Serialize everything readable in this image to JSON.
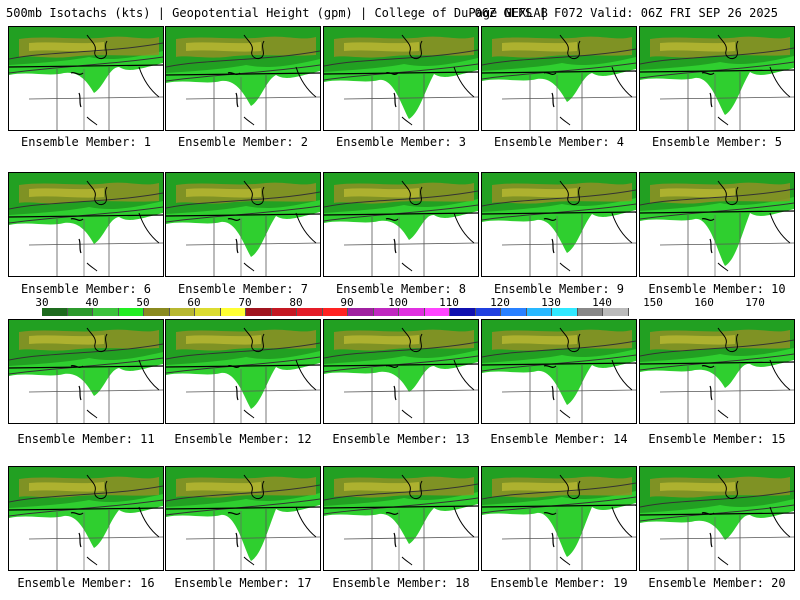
{
  "header": {
    "left": "500mb Isotachs (kts) | Geopotential Height (gpm) | College of DuPage NEXLAB",
    "right": "06Z GEFS | F072 Valid: 06Z FRI SEP 26 2025"
  },
  "colorbar": {
    "ticks": [
      "30",
      "40",
      "50",
      "60",
      "70",
      "80",
      "90",
      "100",
      "110",
      "120",
      "130",
      "140",
      "150",
      "160",
      "170"
    ],
    "colors": [
      "#1e6b1e",
      "#2c9a2c",
      "#3cc33c",
      "#22ee22",
      "#8a8a1f",
      "#b8b830",
      "#dcdc30",
      "#ffff33",
      "#a0141e",
      "#c41822",
      "#e41c28",
      "#ff2222",
      "#a020a0",
      "#c028c0",
      "#e030e0",
      "#ff44ff",
      "#1010b0",
      "#2040e0",
      "#2880ff",
      "#28b8ff",
      "#30e8ff",
      "#888888",
      "#bbbbbb"
    ]
  },
  "members": [
    {
      "label": "Ensemble Member: 1"
    },
    {
      "label": "Ensemble Member: 2"
    },
    {
      "label": "Ensemble Member: 3"
    },
    {
      "label": "Ensemble Member: 4"
    },
    {
      "label": "Ensemble Member: 5"
    },
    {
      "label": "Ensemble Member: 6"
    },
    {
      "label": "Ensemble Member: 7"
    },
    {
      "label": "Ensemble Member: 8"
    },
    {
      "label": "Ensemble Member: 9"
    },
    {
      "label": "Ensemble Member: 10"
    },
    {
      "label": "Ensemble Member: 11"
    },
    {
      "label": "Ensemble Member: 12"
    },
    {
      "label": "Ensemble Member: 13"
    },
    {
      "label": "Ensemble Member: 14"
    },
    {
      "label": "Ensemble Member: 15"
    },
    {
      "label": "Ensemble Member: 16"
    },
    {
      "label": "Ensemble Member: 17"
    },
    {
      "label": "Ensemble Member: 18"
    },
    {
      "label": "Ensemble Member: 19"
    },
    {
      "label": "Ensemble Member: 20"
    }
  ]
}
